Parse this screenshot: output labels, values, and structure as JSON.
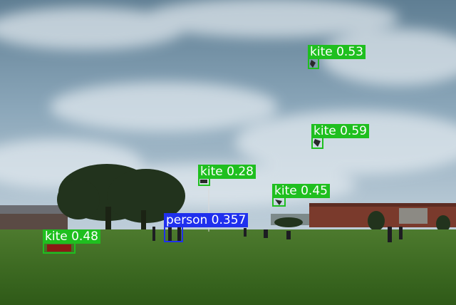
{
  "photo": {
    "subject": "park-with-kites"
  },
  "colors": {
    "kite": "#1fbf1f",
    "person": "#2030ee"
  },
  "detections": [
    {
      "class": "kite",
      "score": "0.53",
      "label": "kite 0.53"
    },
    {
      "class": "kite",
      "score": "0.59",
      "label": "kite 0.59"
    },
    {
      "class": "kite",
      "score": "0.28",
      "label": "kite 0.28"
    },
    {
      "class": "kite",
      "score": "0.45",
      "label": "kite 0.45"
    },
    {
      "class": "person",
      "score": "0.357",
      "label": "person 0.357"
    },
    {
      "class": "kite",
      "score": "0.48",
      "label": "kite 0.48"
    }
  ]
}
